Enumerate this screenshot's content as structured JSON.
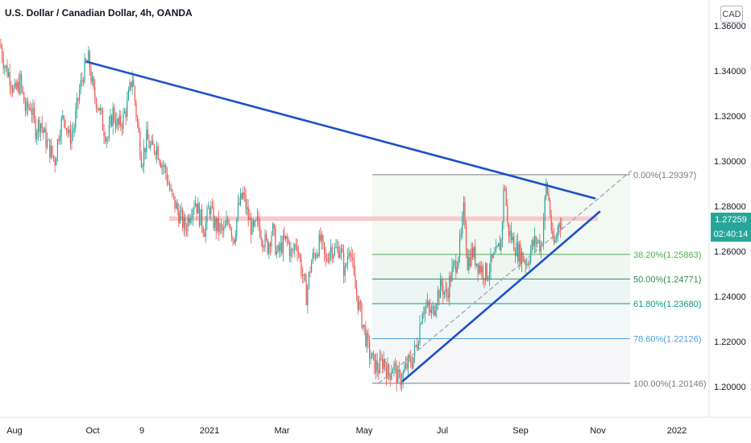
{
  "header": {
    "title": "U.S. Dollar / Canadian Dollar, 4h, OANDA",
    "currency_badge": "CAD"
  },
  "price_tag": {
    "price": "1.27259",
    "countdown": "02:40:14",
    "color": "#26a69a"
  },
  "chart_data": {
    "type": "candlestick",
    "y_axis": {
      "range": [
        1.186,
        1.36
      ],
      "ticks": [
        "1.36000",
        "1.34000",
        "1.32000",
        "1.30000",
        "1.28000",
        "1.26000",
        "1.24000",
        "1.22000",
        "1.20000"
      ]
    },
    "x_axis": {
      "ticks": [
        "Aug",
        "Oct",
        "9",
        "2021",
        "Mar",
        "May",
        "Jul",
        "Sep",
        "Nov",
        "2022"
      ]
    },
    "price_path": [
      [
        0,
        1.352
      ],
      [
        6,
        1.342
      ],
      [
        12,
        1.338
      ],
      [
        18,
        1.33
      ],
      [
        25,
        1.335
      ],
      [
        32,
        1.322
      ],
      [
        38,
        1.325
      ],
      [
        44,
        1.314
      ],
      [
        50,
        1.318
      ],
      [
        56,
        1.31
      ],
      [
        62,
        1.305
      ],
      [
        68,
        1.3
      ],
      [
        74,
        1.315
      ],
      [
        80,
        1.32
      ],
      [
        86,
        1.31
      ],
      [
        92,
        1.315
      ],
      [
        98,
        1.33
      ],
      [
        104,
        1.34
      ],
      [
        110,
        1.345
      ],
      [
        116,
        1.33
      ],
      [
        122,
        1.325
      ],
      [
        128,
        1.315
      ],
      [
        134,
        1.31
      ],
      [
        140,
        1.322
      ],
      [
        146,
        1.315
      ],
      [
        152,
        1.318
      ],
      [
        158,
        1.325
      ],
      [
        164,
        1.338
      ],
      [
        170,
        1.318
      ],
      [
        176,
        1.3
      ],
      [
        182,
        1.31
      ],
      [
        188,
        1.305
      ],
      [
        194,
        1.307
      ],
      [
        200,
        1.3
      ],
      [
        206,
        1.295
      ],
      [
        212,
        1.285
      ],
      [
        218,
        1.28
      ],
      [
        224,
        1.275
      ],
      [
        230,
        1.27
      ],
      [
        236,
        1.278
      ],
      [
        242,
        1.283
      ],
      [
        248,
        1.275
      ],
      [
        254,
        1.27
      ],
      [
        260,
        1.28
      ],
      [
        266,
        1.272
      ],
      [
        272,
        1.27
      ],
      [
        278,
        1.268
      ],
      [
        284,
        1.275
      ],
      [
        290,
        1.265
      ],
      [
        296,
        1.28
      ],
      [
        302,
        1.285
      ],
      [
        308,
        1.275
      ],
      [
        314,
        1.268
      ],
      [
        320,
        1.273
      ],
      [
        326,
        1.266
      ],
      [
        332,
        1.262
      ],
      [
        338,
        1.27
      ],
      [
        344,
        1.258
      ],
      [
        350,
        1.263
      ],
      [
        356,
        1.265
      ],
      [
        362,
        1.258
      ],
      [
        368,
        1.265
      ],
      [
        374,
        1.252
      ],
      [
        380,
        1.24
      ],
      [
        386,
        1.255
      ],
      [
        392,
        1.26
      ],
      [
        398,
        1.265
      ],
      [
        404,
        1.255
      ],
      [
        410,
        1.262
      ],
      [
        416,
        1.26
      ],
      [
        422,
        1.262
      ],
      [
        428,
        1.25
      ],
      [
        434,
        1.265
      ],
      [
        440,
        1.245
      ],
      [
        446,
        1.235
      ],
      [
        452,
        1.225
      ],
      [
        458,
        1.215
      ],
      [
        464,
        1.21
      ],
      [
        470,
        1.208
      ],
      [
        476,
        1.212
      ],
      [
        482,
        1.205
      ],
      [
        488,
        1.21
      ],
      [
        494,
        1.203
      ],
      [
        500,
        1.205
      ],
      [
        506,
        1.21
      ],
      [
        512,
        1.212
      ],
      [
        518,
        1.22
      ],
      [
        524,
        1.235
      ],
      [
        530,
        1.235
      ],
      [
        536,
        1.232
      ],
      [
        542,
        1.24
      ],
      [
        548,
        1.245
      ],
      [
        554,
        1.24
      ],
      [
        560,
        1.25
      ],
      [
        566,
        1.255
      ],
      [
        572,
        1.265
      ],
      [
        576,
        1.28
      ],
      [
        580,
        1.255
      ],
      [
        586,
        1.26
      ],
      [
        592,
        1.255
      ],
      [
        598,
        1.252
      ],
      [
        604,
        1.25
      ],
      [
        610,
        1.255
      ],
      [
        616,
        1.258
      ],
      [
        622,
        1.265
      ],
      [
        626,
        1.293
      ],
      [
        630,
        1.27
      ],
      [
        636,
        1.265
      ],
      [
        642,
        1.26
      ],
      [
        648,
        1.258
      ],
      [
        654,
        1.255
      ],
      [
        660,
        1.262
      ],
      [
        666,
        1.265
      ],
      [
        672,
        1.262
      ],
      [
        678,
        1.29
      ],
      [
        682,
        1.28
      ],
      [
        686,
        1.262
      ],
      [
        690,
        1.265
      ],
      [
        694,
        1.275
      ],
      [
        698,
        1.27
      ]
    ],
    "trendlines": [
      {
        "name": "descending_resistance",
        "color": "#1e50c8",
        "points": [
          [
            108,
            1.344
          ],
          [
            738,
            1.2835
          ]
        ]
      },
      {
        "name": "ascending_support",
        "color": "#1e50c8",
        "points": [
          [
            500,
            1.2025
          ],
          [
            744,
            1.2775
          ]
        ]
      },
      {
        "name": "dashed_projection",
        "color": "#9aa0a8",
        "dashed": true,
        "points": [
          [
            470,
            1.2015
          ],
          [
            786,
            1.2965
          ]
        ]
      }
    ],
    "resistance_zone": {
      "color": "#f7c4c4",
      "y": [
        1.2735,
        1.2755
      ],
      "x": [
        210,
        742
      ]
    },
    "fibonacci": {
      "x_range": [
        462,
        782
      ],
      "levels": [
        {
          "label": "0.00%(1.29397)",
          "price": 1.29397,
          "color": "#787b86"
        },
        {
          "label": "38.20%(1.25863)",
          "price": 1.25863,
          "color": "#4caf50"
        },
        {
          "label": "50.00%(1.24771)",
          "price": 1.24771,
          "color": "#2e8b57"
        },
        {
          "label": "61.80%(1.23680)",
          "price": 1.2368,
          "color": "#089981"
        },
        {
          "label": "78.60%(1.22126)",
          "price": 1.22126,
          "color": "#4a9fd4"
        },
        {
          "label": "100.00%(1.20146)",
          "price": 1.20146,
          "color": "#787b86"
        }
      ]
    }
  }
}
